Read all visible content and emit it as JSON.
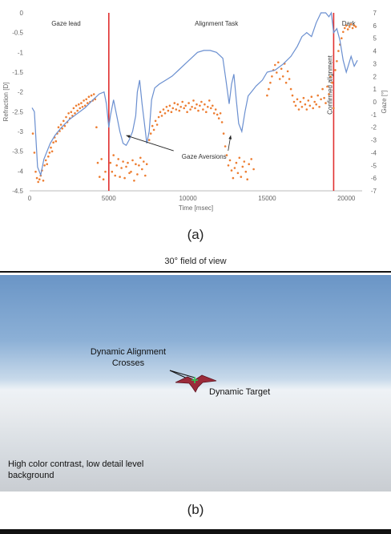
{
  "chart_data": {
    "type": "line",
    "xlabel": "Time [msec]",
    "ylabel": "Refraction [D]",
    "y2label": "Gaze [°]",
    "xlim": [
      0,
      21000
    ],
    "ylim": [
      -4.5,
      0
    ],
    "y2lim": [
      -7,
      7
    ],
    "xticks": [
      "0",
      "5000",
      "10000",
      "15000",
      "20000"
    ],
    "yticks": [
      "0",
      "-0.5",
      "-1",
      "-1.5",
      "-2",
      "-2.5",
      "-3",
      "-3.5",
      "-4",
      "-4.5"
    ],
    "y2ticks": [
      "7",
      "6",
      "5",
      "4",
      "3",
      "2",
      "1",
      "0",
      "-1",
      "-2",
      "-3",
      "-4",
      "-5",
      "-6",
      "-7"
    ],
    "grid": false,
    "phases": [
      {
        "label": "Gaze lead",
        "x": 2300
      },
      {
        "label": "Alignment Task",
        "x": 11800
      },
      {
        "label": "Dark",
        "x": 20150
      }
    ],
    "markers": [
      {
        "x": 5000,
        "color": "#e03030"
      },
      {
        "x": 19200,
        "color": "#e03030",
        "label": "Confirmed alignment"
      }
    ],
    "annotation": {
      "label": "Gaze Aversions",
      "x": 9500,
      "y": -3.65,
      "arrows_to": [
        [
          6100,
          -3.1
        ],
        [
          12700,
          -3.1
        ]
      ]
    },
    "series": [
      {
        "axis": "left",
        "kind": "line",
        "color": "#6a8fd0",
        "points": [
          [
            150,
            -2.4
          ],
          [
            300,
            -2.5
          ],
          [
            500,
            -3.9
          ],
          [
            700,
            -4.1
          ],
          [
            900,
            -3.7
          ],
          [
            1100,
            -3.5
          ],
          [
            1300,
            -3.3
          ],
          [
            1600,
            -3.1
          ],
          [
            2000,
            -2.9
          ],
          [
            2500,
            -2.7
          ],
          [
            3000,
            -2.55
          ],
          [
            3500,
            -2.4
          ],
          [
            4000,
            -2.2
          ],
          [
            4400,
            -2.05
          ],
          [
            4700,
            -2.0
          ],
          [
            4850,
            -2.3
          ],
          [
            5000,
            -2.9
          ],
          [
            5100,
            -2.6
          ],
          [
            5300,
            -2.2
          ],
          [
            5500,
            -2.6
          ],
          [
            5700,
            -3.0
          ],
          [
            5900,
            -3.3
          ],
          [
            6100,
            -3.35
          ],
          [
            6300,
            -3.2
          ],
          [
            6500,
            -3.0
          ],
          [
            6700,
            -2.6
          ],
          [
            6800,
            -2.0
          ],
          [
            6950,
            -1.7
          ],
          [
            7100,
            -2.3
          ],
          [
            7250,
            -2.8
          ],
          [
            7400,
            -3.3
          ],
          [
            7550,
            -3.0
          ],
          [
            7700,
            -2.2
          ],
          [
            7900,
            -1.9
          ],
          [
            8200,
            -1.8
          ],
          [
            8600,
            -1.7
          ],
          [
            9000,
            -1.6
          ],
          [
            9400,
            -1.45
          ],
          [
            9800,
            -1.3
          ],
          [
            10200,
            -1.15
          ],
          [
            10600,
            -1.0
          ],
          [
            11000,
            -0.95
          ],
          [
            11400,
            -0.95
          ],
          [
            11800,
            -1.0
          ],
          [
            12200,
            -1.15
          ],
          [
            12400,
            -1.7
          ],
          [
            12600,
            -2.3
          ],
          [
            12750,
            -1.8
          ],
          [
            12900,
            -1.55
          ],
          [
            13050,
            -2.2
          ],
          [
            13200,
            -2.8
          ],
          [
            13400,
            -3.0
          ],
          [
            13600,
            -2.5
          ],
          [
            13800,
            -2.1
          ],
          [
            14000,
            -2.0
          ],
          [
            14300,
            -1.85
          ],
          [
            14700,
            -1.7
          ],
          [
            15000,
            -1.5
          ],
          [
            15500,
            -1.45
          ],
          [
            16000,
            -1.3
          ],
          [
            16500,
            -1.1
          ],
          [
            16900,
            -0.85
          ],
          [
            17200,
            -0.6
          ],
          [
            17500,
            -0.5
          ],
          [
            17800,
            -0.6
          ],
          [
            18100,
            -0.25
          ],
          [
            18400,
            -0.0
          ],
          [
            18700,
            0.0
          ],
          [
            18900,
            -0.1
          ],
          [
            19050,
            0.0
          ],
          [
            19200,
            -0.5
          ],
          [
            19400,
            -0.4
          ],
          [
            19600,
            -0.7
          ],
          [
            19800,
            -1.2
          ],
          [
            20000,
            -1.5
          ],
          [
            20300,
            -1.1
          ],
          [
            20500,
            -1.35
          ],
          [
            20700,
            -1.2
          ]
        ]
      },
      {
        "axis": "right",
        "kind": "scatter",
        "color": "#ed7d31",
        "points": [
          [
            200,
            -2.5
          ],
          [
            300,
            -4.0
          ],
          [
            380,
            -5.5
          ],
          [
            460,
            -6.0
          ],
          [
            540,
            -6.3
          ],
          [
            620,
            -6.1
          ],
          [
            700,
            -5.8
          ],
          [
            780,
            -5.4
          ],
          [
            860,
            -6.2
          ],
          [
            940,
            -5.0
          ],
          [
            1020,
            -4.6
          ],
          [
            1100,
            -4.9
          ],
          [
            1180,
            -4.3
          ],
          [
            1260,
            -4.0
          ],
          [
            1340,
            -3.6
          ],
          [
            1420,
            -3.9
          ],
          [
            1500,
            -3.2
          ],
          [
            1580,
            -2.8
          ],
          [
            1660,
            -3.1
          ],
          [
            1740,
            -2.5
          ],
          [
            1820,
            -2.0
          ],
          [
            1900,
            -2.3
          ],
          [
            1980,
            -1.8
          ],
          [
            2060,
            -2.1
          ],
          [
            2140,
            -1.5
          ],
          [
            2220,
            -1.9
          ],
          [
            2300,
            -1.2
          ],
          [
            2380,
            -1.6
          ],
          [
            2460,
            -0.9
          ],
          [
            2540,
            -1.3
          ],
          [
            2620,
            -0.8
          ],
          [
            2700,
            -1.1
          ],
          [
            2780,
            -0.5
          ],
          [
            2860,
            -0.9
          ],
          [
            2940,
            -0.3
          ],
          [
            3020,
            -0.7
          ],
          [
            3100,
            -0.2
          ],
          [
            3180,
            -0.5
          ],
          [
            3260,
            -0.1
          ],
          [
            3340,
            -0.4
          ],
          [
            3420,
            0.1
          ],
          [
            3500,
            -0.3
          ],
          [
            3580,
            0.2
          ],
          [
            3660,
            -0.1
          ],
          [
            3740,
            0.4
          ],
          [
            3820,
            0.0
          ],
          [
            3900,
            0.5
          ],
          [
            3980,
            0.1
          ],
          [
            4060,
            0.6
          ],
          [
            4140,
            0.2
          ],
          [
            4220,
            -2.0
          ],
          [
            4300,
            -4.8
          ],
          [
            4420,
            -5.9
          ],
          [
            4540,
            -4.5
          ],
          [
            4660,
            -6.1
          ],
          [
            4780,
            -5.5
          ],
          [
            5100,
            -4.8
          ],
          [
            5200,
            -5.5
          ],
          [
            5300,
            -4.2
          ],
          [
            5400,
            -5.8
          ],
          [
            5500,
            -5.0
          ],
          [
            5600,
            -4.5
          ],
          [
            5700,
            -5.9
          ],
          [
            5800,
            -5.2
          ],
          [
            5900,
            -4.7
          ],
          [
            6000,
            -6.0
          ],
          [
            6100,
            -5.1
          ],
          [
            6200,
            -4.8
          ],
          [
            6300,
            -5.6
          ],
          [
            6400,
            -5.5
          ],
          [
            6500,
            -4.6
          ],
          [
            6600,
            -6.2
          ],
          [
            6700,
            -4.9
          ],
          [
            6800,
            -5.7
          ],
          [
            6900,
            -5.0
          ],
          [
            7000,
            -4.4
          ],
          [
            7100,
            -5.3
          ],
          [
            7200,
            -4.7
          ],
          [
            7300,
            -5.8
          ],
          [
            7400,
            -4.9
          ],
          [
            7550,
            -3.0
          ],
          [
            7650,
            -2.5
          ],
          [
            7750,
            -1.9
          ],
          [
            7850,
            -2.2
          ],
          [
            7950,
            -1.5
          ],
          [
            8050,
            -1.8
          ],
          [
            8150,
            -1.2
          ],
          [
            8250,
            -0.8
          ],
          [
            8350,
            -1.1
          ],
          [
            8450,
            -0.6
          ],
          [
            8550,
            -0.9
          ],
          [
            8650,
            -0.4
          ],
          [
            8750,
            -0.7
          ],
          [
            8850,
            -0.3
          ],
          [
            8950,
            -0.8
          ],
          [
            9050,
            -0.5
          ],
          [
            9150,
            -0.1
          ],
          [
            9250,
            -0.6
          ],
          [
            9350,
            -0.2
          ],
          [
            9450,
            -0.7
          ],
          [
            9550,
            -0.4
          ],
          [
            9650,
            0.0
          ],
          [
            9750,
            -0.5
          ],
          [
            9850,
            -0.3
          ],
          [
            9950,
            -0.8
          ],
          [
            10050,
            -0.1
          ],
          [
            10150,
            -0.6
          ],
          [
            10250,
            -0.4
          ],
          [
            10350,
            0.1
          ],
          [
            10450,
            -0.5
          ],
          [
            10550,
            -0.2
          ],
          [
            10650,
            -0.7
          ],
          [
            10750,
            -0.3
          ],
          [
            10850,
            0.0
          ],
          [
            10950,
            -0.6
          ],
          [
            11050,
            -0.2
          ],
          [
            11150,
            -0.8
          ],
          [
            11250,
            -0.4
          ],
          [
            11350,
            0.1
          ],
          [
            11450,
            -0.5
          ],
          [
            11550,
            -0.3
          ],
          [
            11650,
            -0.9
          ],
          [
            11750,
            -0.6
          ],
          [
            11850,
            -1.0
          ],
          [
            11950,
            -1.3
          ],
          [
            12050,
            -0.9
          ],
          [
            12150,
            -1.6
          ],
          [
            12250,
            -2.5
          ],
          [
            12350,
            -3.5
          ],
          [
            12450,
            -4.2
          ],
          [
            12550,
            -5.0
          ],
          [
            12650,
            -4.6
          ],
          [
            12750,
            -5.4
          ],
          [
            12850,
            -6.0
          ],
          [
            12950,
            -5.2
          ],
          [
            13050,
            -4.8
          ],
          [
            13150,
            -5.6
          ],
          [
            13250,
            -4.4
          ],
          [
            13350,
            -5.9
          ],
          [
            13450,
            -5.1
          ],
          [
            13550,
            -4.7
          ],
          [
            13650,
            -5.5
          ],
          [
            13750,
            -6.1
          ],
          [
            13850,
            -4.9
          ],
          [
            14000,
            -4.5
          ],
          [
            14150,
            -5.3
          ],
          [
            15000,
            0.5
          ],
          [
            15100,
            1.0
          ],
          [
            15200,
            1.5
          ],
          [
            15300,
            2.0
          ],
          [
            15400,
            2.5
          ],
          [
            15500,
            2.9
          ],
          [
            15600,
            2.3
          ],
          [
            15700,
            3.1
          ],
          [
            15800,
            1.8
          ],
          [
            15900,
            2.6
          ],
          [
            16000,
            2.0
          ],
          [
            16100,
            3.0
          ],
          [
            16200,
            1.5
          ],
          [
            16300,
            2.4
          ],
          [
            16400,
            1.8
          ],
          [
            16500,
            1.0
          ],
          [
            16600,
            0.5
          ],
          [
            16700,
            0.0
          ],
          [
            16800,
            -0.3
          ],
          [
            16900,
            0.2
          ],
          [
            17000,
            -0.6
          ],
          [
            17100,
            0.0
          ],
          [
            17200,
            -0.4
          ],
          [
            17300,
            0.3
          ],
          [
            17400,
            -0.2
          ],
          [
            17500,
            -0.6
          ],
          [
            17600,
            0.1
          ],
          [
            17700,
            -0.3
          ],
          [
            17800,
            0.4
          ],
          [
            17900,
            -0.5
          ],
          [
            18000,
            0.0
          ],
          [
            18100,
            -0.2
          ],
          [
            18200,
            0.5
          ],
          [
            18300,
            -0.4
          ],
          [
            18400,
            0.2
          ],
          [
            18500,
            1.0
          ],
          [
            18600,
            0.3
          ],
          [
            18700,
            -0.1
          ],
          [
            18800,
            1.2
          ],
          [
            18900,
            0.6
          ],
          [
            19000,
            2.0
          ],
          [
            19100,
            1.5
          ],
          [
            19200,
            -0.5
          ],
          [
            19300,
            2.5
          ],
          [
            19400,
            3.2
          ],
          [
            19500,
            4.0
          ],
          [
            19600,
            4.5
          ],
          [
            19700,
            5.0
          ],
          [
            19800,
            5.5
          ],
          [
            19900,
            5.8
          ],
          [
            20000,
            6.0
          ],
          [
            20100,
            5.7
          ],
          [
            20200,
            5.9
          ],
          [
            20300,
            6.1
          ],
          [
            20400,
            5.8
          ],
          [
            20500,
            6.0
          ],
          [
            20600,
            5.9
          ]
        ]
      }
    ]
  },
  "captions": {
    "a": "(a)",
    "b": "(b)"
  },
  "sim": {
    "fov_label": "30° field of view",
    "crosses_label": "Dynamic Alignment Crosses",
    "target_label": "Dynamic Target",
    "background_label": "High color contrast, low detail level background"
  }
}
